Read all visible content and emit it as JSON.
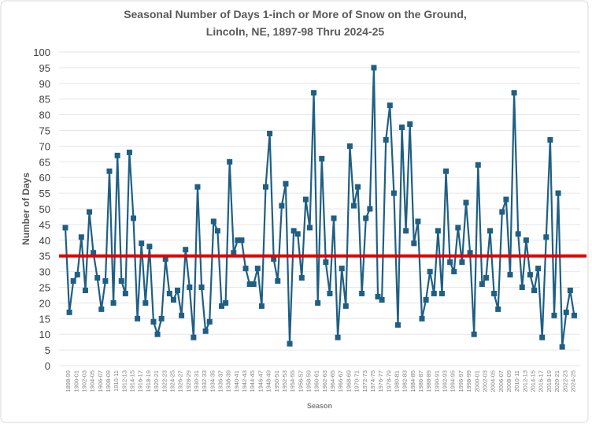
{
  "chart_data": {
    "type": "line",
    "title": "Seasonal Number of Days 1-inch or More of Snow on the Ground,",
    "subtitle": "Lincoln, NE, 1897-98 Thru 2024-25",
    "xlabel": "Season",
    "ylabel": "Number of Days",
    "ylim": [
      0,
      100
    ],
    "y_ticks": [
      0,
      5,
      10,
      15,
      20,
      25,
      30,
      35,
      40,
      45,
      50,
      55,
      60,
      65,
      70,
      75,
      80,
      85,
      90,
      95,
      100
    ],
    "grid": true,
    "legend": "none",
    "marker": "square",
    "series_color": "#1f5f84",
    "x_tick_labels": [
      "1898-99",
      "1900-01",
      "1902-03",
      "1904-05",
      "1906-07",
      "1908-09",
      "1910-11",
      "1912-13",
      "1914-15",
      "1916-17",
      "1918-19",
      "1920-21",
      "1922-23",
      "1924-25",
      "1926-27",
      "1928-29",
      "1930-31",
      "1932-33",
      "1934-35",
      "1936-37",
      "1938-39",
      "1940-41",
      "1942-43",
      "1944-45",
      "1946-47",
      "1948-49",
      "1950-51",
      "1952-53",
      "1954-55",
      "1956-57",
      "1958-59",
      "1960-61",
      "1962-63",
      "1964-65",
      "1966-67",
      "1968-69",
      "1970-71",
      "1972-73",
      "1974-75",
      "1976-77",
      "1978-79",
      "1980-81",
      "1982-83",
      "1984-85",
      "1986-87",
      "1988-89",
      "1990-91",
      "1992-93",
      "1994-95",
      "1996-97",
      "1998-99",
      "2000-01",
      "2002-03",
      "2004-05",
      "2006-07",
      "2008-09",
      "2010-11",
      "2012-13",
      "2014-15",
      "2016-17",
      "2018-19",
      "2020-21",
      "2022-23",
      "2024-25"
    ],
    "values": [
      44,
      17,
      27,
      29,
      41,
      24,
      49,
      36,
      28,
      18,
      27,
      62,
      20,
      67,
      27,
      23,
      68,
      47,
      15,
      39,
      20,
      38,
      14,
      10,
      15,
      34,
      23,
      21,
      24,
      16,
      37,
      25,
      9,
      57,
      25,
      11,
      14,
      46,
      43,
      19,
      20,
      65,
      36,
      40,
      40,
      31,
      26,
      26,
      31,
      19,
      57,
      74,
      34,
      27,
      51,
      58,
      7,
      43,
      42,
      28,
      53,
      44,
      87,
      20,
      66,
      33,
      23,
      47,
      9,
      31,
      19,
      70,
      51,
      57,
      23,
      47,
      50,
      95,
      22,
      21,
      72,
      83,
      55,
      13,
      76,
      43,
      77,
      39,
      46,
      15,
      21,
      30,
      23,
      43,
      23,
      62,
      33,
      30,
      44,
      33,
      52,
      36,
      10,
      64,
      26,
      28,
      43,
      23,
      18,
      49,
      53,
      29,
      87,
      42,
      25,
      40,
      29,
      24,
      31,
      9,
      41,
      72,
      16,
      55,
      6,
      17,
      24,
      16
    ],
    "reference_line": {
      "value": 35,
      "color": "#e00000"
    }
  }
}
